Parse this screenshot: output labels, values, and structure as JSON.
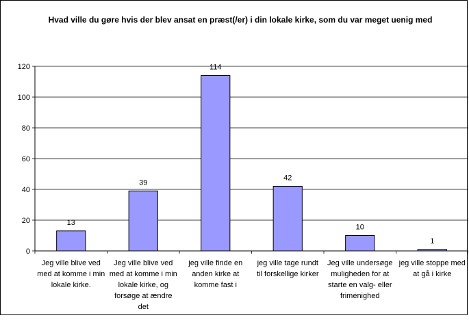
{
  "chart_data": {
    "type": "bar",
    "title": "Hvad ville du gøre hvis der blev ansat en præst(/er) i din lokale kirke, som du var meget uenig med",
    "xlabel": "",
    "ylabel": "",
    "categories": [
      "Jeg ville blive ved med at komme i min lokale kirke.",
      "Jeg ville blive ved med at komme i min lokale kirke, og forsøge at ændre det",
      "jeg ville finde en anden kirke at komme fast i",
      "jeg ville tage rundt til forskellige kirker",
      "Jeg ville undersøge muligheden for at starte en valg- eller frimenighed",
      "jeg ville stoppe med at gå i kirke"
    ],
    "values": [
      13,
      39,
      114,
      42,
      10,
      1
    ],
    "ylim": [
      0,
      120
    ],
    "yticks": [
      0,
      20,
      40,
      60,
      80,
      100,
      120
    ],
    "grid": true,
    "legend": "none",
    "colors": {
      "bar_fill": "#9999ff",
      "bar_stroke": "#000000",
      "grid": "#000000"
    }
  }
}
